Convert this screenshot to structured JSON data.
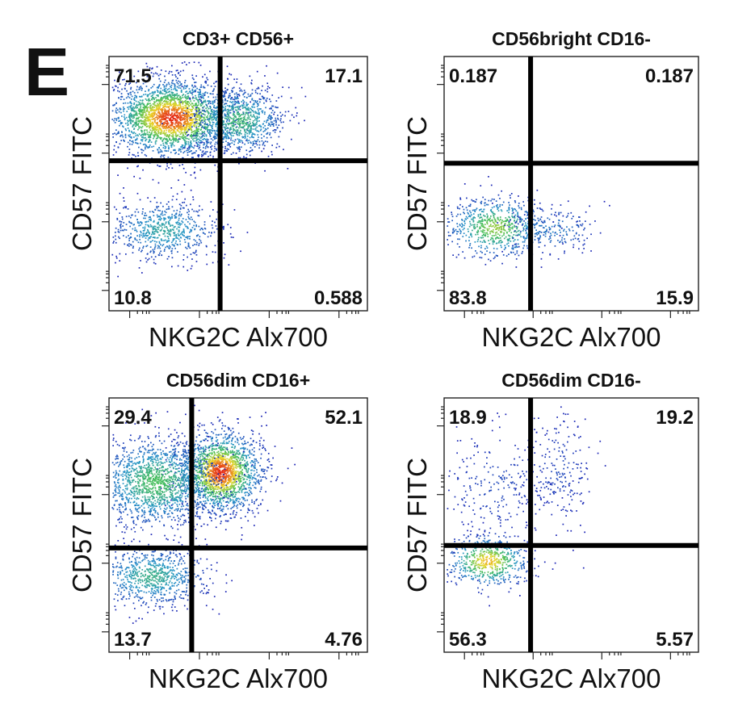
{
  "panel_letter": "E",
  "chart_data": [
    {
      "type": "scatter",
      "subtype": "flow-cytometry-density-dot-plot",
      "title": "CD3+ CD56+",
      "xlabel": "NKG2C Alx700",
      "ylabel": "CD57 FITC",
      "quadrants": {
        "upper_left": "71.5",
        "upper_right": "17.1",
        "lower_left": "10.8",
        "lower_right": "0.588"
      },
      "gate": {
        "x": 0.43,
        "y": 0.59
      },
      "populations": [
        {
          "cx": 0.24,
          "cy": 0.76,
          "sx": 0.12,
          "sy": 0.075,
          "n": 2600,
          "peak": 1.0
        },
        {
          "cx": 0.5,
          "cy": 0.75,
          "sx": 0.09,
          "sy": 0.07,
          "n": 900,
          "peak": 0.55
        },
        {
          "cx": 0.21,
          "cy": 0.32,
          "sx": 0.11,
          "sy": 0.06,
          "n": 700,
          "peak": 0.45
        }
      ]
    },
    {
      "type": "scatter",
      "subtype": "flow-cytometry-density-dot-plot",
      "title": "CD56bright CD16-",
      "xlabel": "NKG2C Alx700",
      "ylabel": "CD57 FITC",
      "quadrants": {
        "upper_left": "0.187",
        "upper_right": "0.187",
        "lower_left": "83.8",
        "lower_right": "15.9"
      },
      "gate": {
        "x": 0.34,
        "y": 0.58
      },
      "populations": [
        {
          "cx": 0.2,
          "cy": 0.33,
          "sx": 0.1,
          "sy": 0.06,
          "n": 700,
          "peak": 0.7
        },
        {
          "cx": 0.42,
          "cy": 0.32,
          "sx": 0.09,
          "sy": 0.05,
          "n": 200,
          "peak": 0.3
        }
      ]
    },
    {
      "type": "scatter",
      "subtype": "flow-cytometry-density-dot-plot",
      "title": "CD56dim CD16+",
      "xlabel": "NKG2C Alx700",
      "ylabel": "CD57 FITC",
      "quadrants": {
        "upper_left": "29.4",
        "upper_right": "52.1",
        "lower_left": "13.7",
        "lower_right": "4.76"
      },
      "gate": {
        "x": 0.32,
        "y": 0.41
      },
      "populations": [
        {
          "cx": 0.43,
          "cy": 0.71,
          "sx": 0.08,
          "sy": 0.08,
          "n": 1900,
          "peak": 1.0
        },
        {
          "cx": 0.18,
          "cy": 0.67,
          "sx": 0.12,
          "sy": 0.09,
          "n": 1600,
          "peak": 0.6
        },
        {
          "cx": 0.16,
          "cy": 0.3,
          "sx": 0.11,
          "sy": 0.06,
          "n": 800,
          "peak": 0.5
        }
      ]
    },
    {
      "type": "scatter",
      "subtype": "flow-cytometry-density-dot-plot",
      "title": "CD56dim CD16-",
      "xlabel": "NKG2C Alx700",
      "ylabel": "CD57 FITC",
      "quadrants": {
        "upper_left": "18.9",
        "upper_right": "19.2",
        "lower_left": "56.3",
        "lower_right": "5.57"
      },
      "gate": {
        "x": 0.34,
        "y": 0.42
      },
      "populations": [
        {
          "cx": 0.17,
          "cy": 0.36,
          "sx": 0.08,
          "sy": 0.05,
          "n": 600,
          "peak": 0.85
        },
        {
          "cx": 0.2,
          "cy": 0.66,
          "sx": 0.12,
          "sy": 0.12,
          "n": 260,
          "peak": 0.12
        },
        {
          "cx": 0.45,
          "cy": 0.72,
          "sx": 0.07,
          "sy": 0.12,
          "n": 200,
          "peak": 0.12
        }
      ]
    }
  ]
}
